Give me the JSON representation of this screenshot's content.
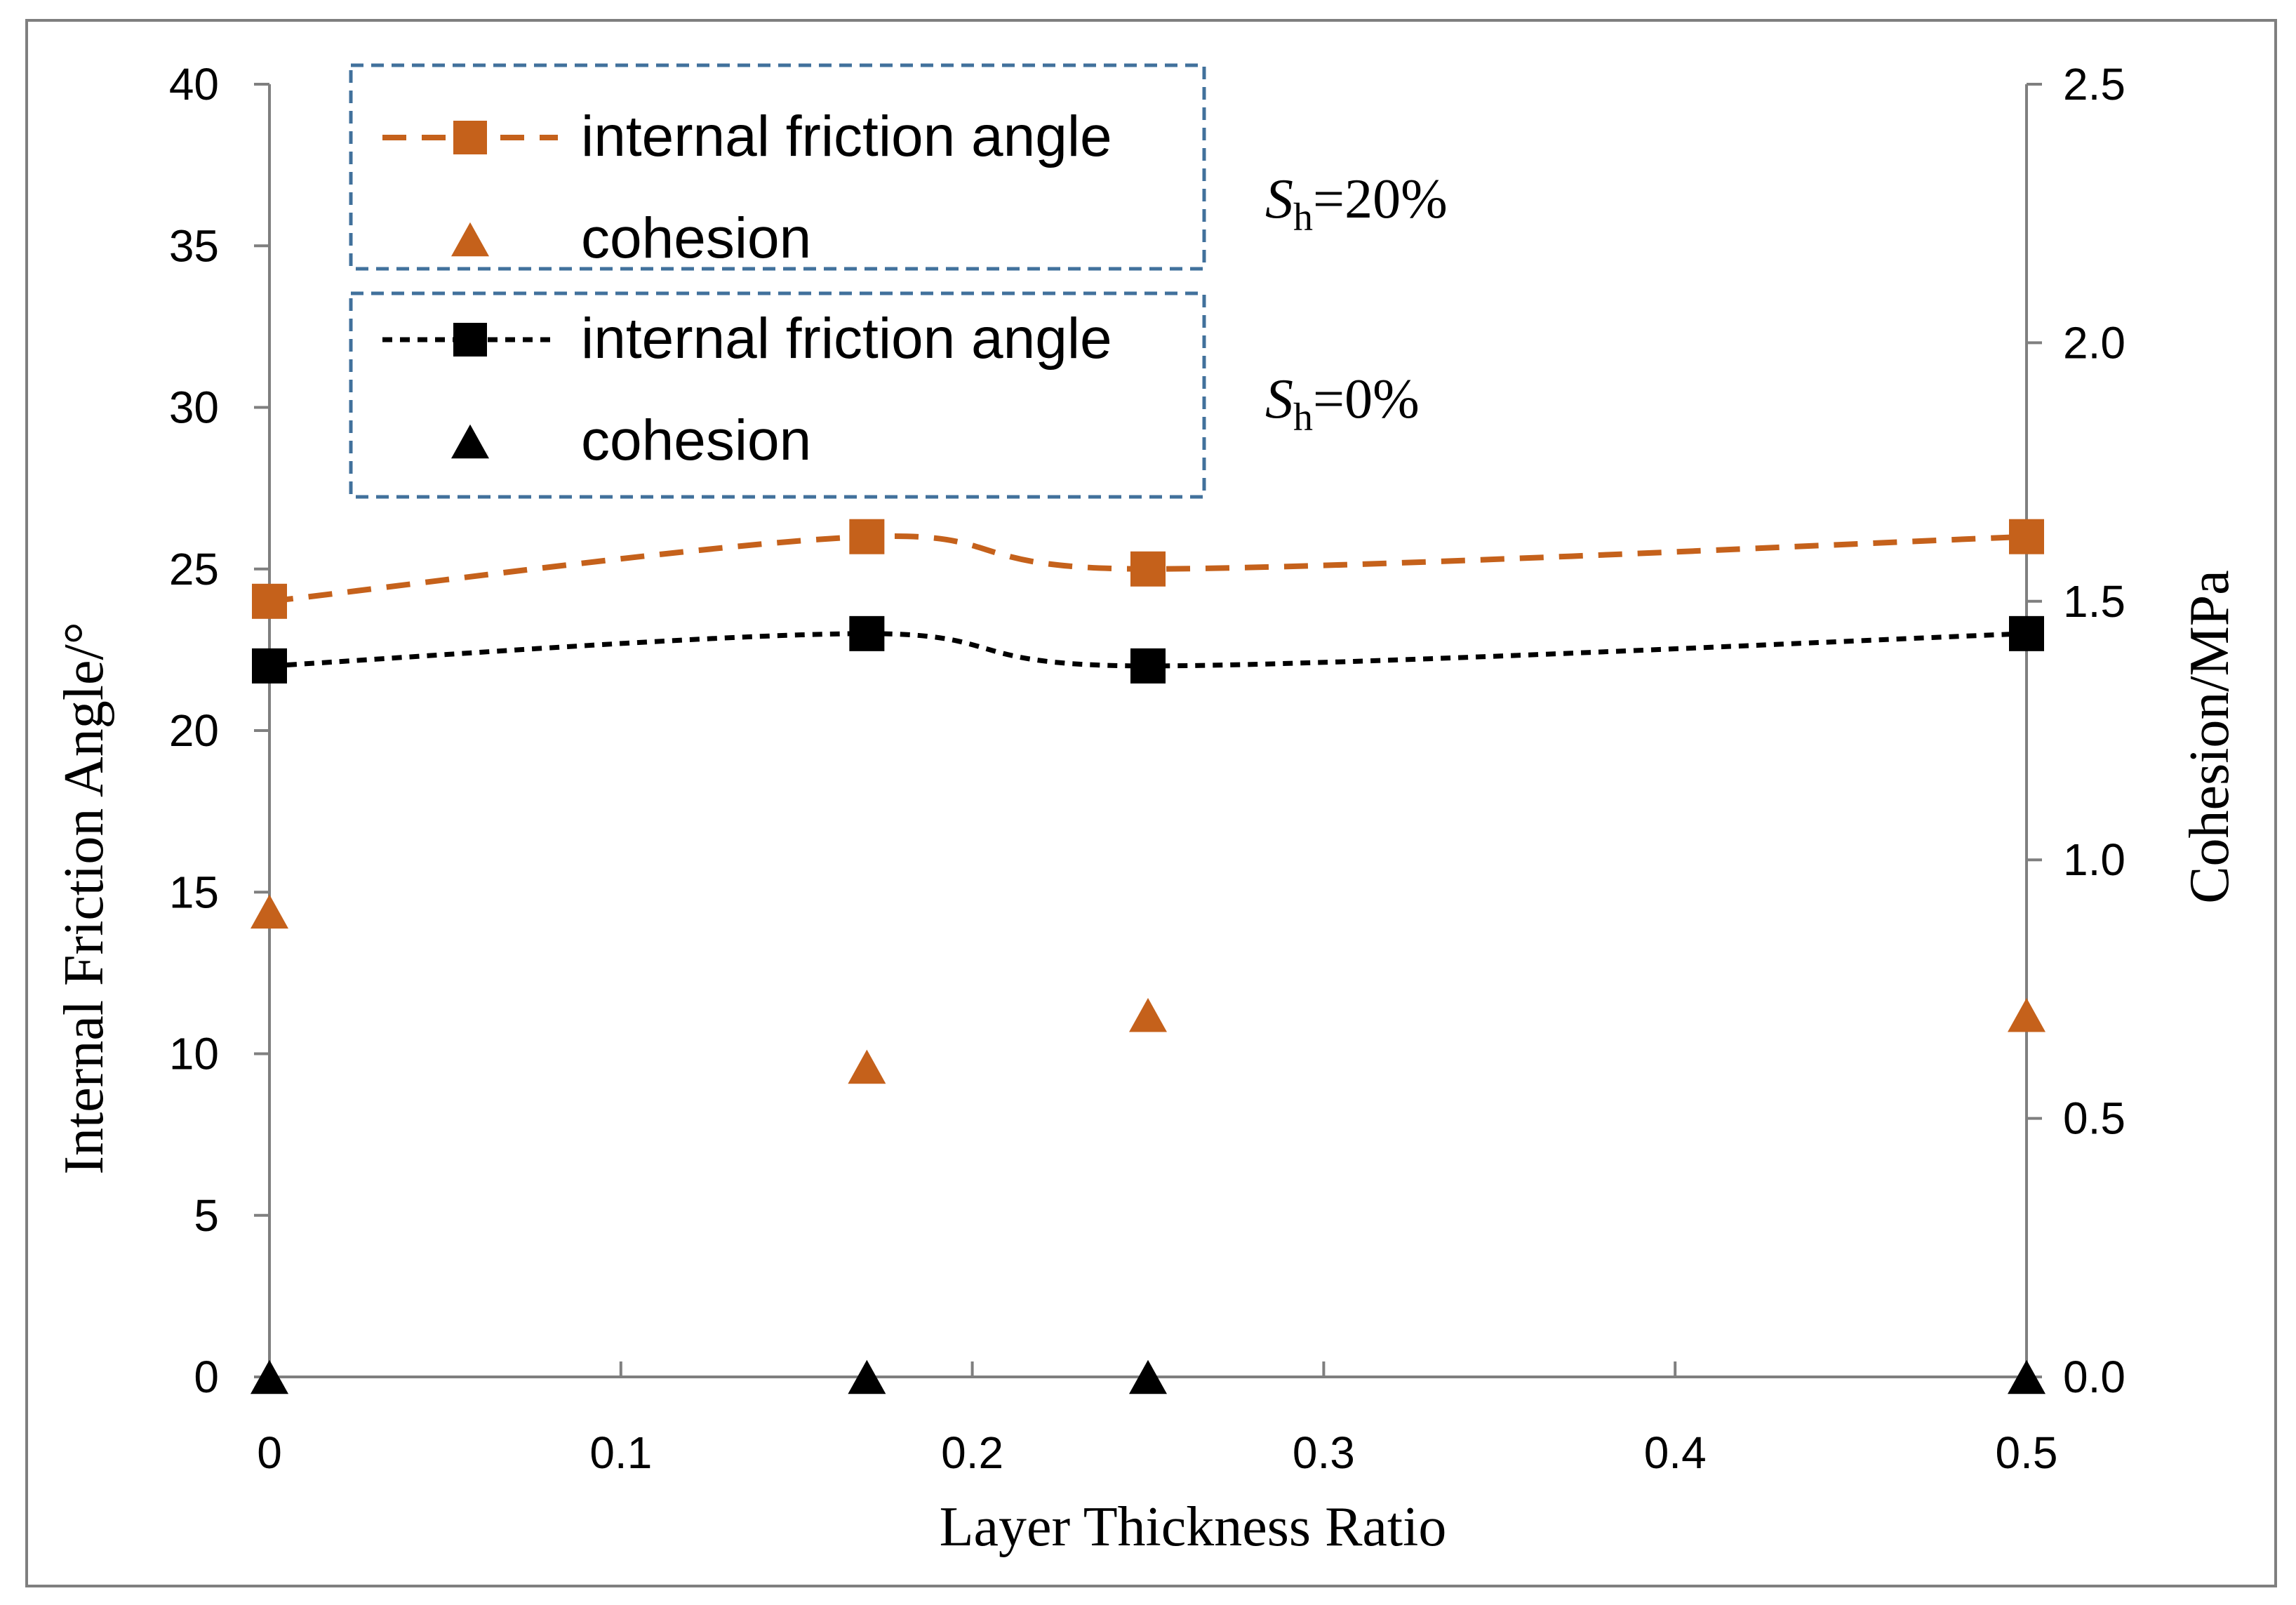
{
  "chart_data": {
    "type": "line",
    "xlabel": "Layer Thickness Ratio",
    "ylabel_left": "Internal Friction Angle/°",
    "ylabel_right": "Cohesion/MPa",
    "xlim": [
      0,
      0.5
    ],
    "ylim_left": [
      0,
      40
    ],
    "ylim_right": [
      0,
      2.5
    ],
    "x_ticks": [
      "0",
      "0.1",
      "0.2",
      "0.3",
      "0.4",
      "0.5"
    ],
    "y_left_ticks": [
      "0",
      "5",
      "10",
      "15",
      "20",
      "25",
      "30",
      "35",
      "40"
    ],
    "y_right_ticks": [
      "0.0",
      "0.5",
      "1.0",
      "1.5",
      "2.0",
      "2.5"
    ],
    "grid": false,
    "legend_position": "top-left",
    "x": [
      0,
      0.17,
      0.25,
      0.5
    ],
    "series": [
      {
        "name": "internal friction angle",
        "group": "Sh=20%",
        "axis": "left",
        "marker": "square",
        "line": "dashed",
        "color": "#C5611B",
        "values": [
          24,
          26,
          25,
          26
        ]
      },
      {
        "name": "cohesion",
        "group": "Sh=20%",
        "axis": "right",
        "marker": "triangle",
        "line": "none",
        "color": "#C5611B",
        "values": [
          0.9,
          0.6,
          0.7,
          0.7
        ]
      },
      {
        "name": "internal friction angle",
        "group": "Sh=0%",
        "axis": "left",
        "marker": "square",
        "line": "dotted",
        "color": "#000000",
        "values": [
          22,
          23,
          22,
          23
        ]
      },
      {
        "name": "cohesion",
        "group": "Sh=0%",
        "axis": "right",
        "marker": "triangle",
        "line": "none",
        "color": "#000000",
        "values": [
          0,
          0,
          0,
          0
        ]
      }
    ],
    "legend": [
      {
        "label": "internal friction angle",
        "series": 0
      },
      {
        "label": "cohesion",
        "series": 1
      },
      {
        "label": "internal friction angle",
        "series": 2
      },
      {
        "label": "cohesion",
        "series": 3
      }
    ],
    "annotations": [
      {
        "var": "S",
        "sub": "h",
        "rest": "=20%"
      },
      {
        "var": "S",
        "sub": "h",
        "rest": "=0%"
      }
    ]
  }
}
